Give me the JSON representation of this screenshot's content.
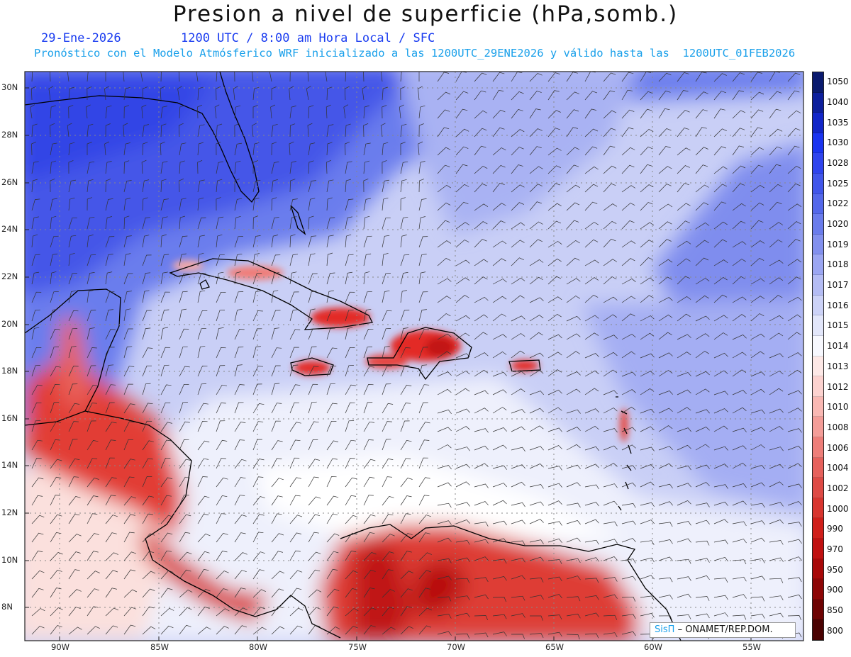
{
  "header": {
    "title": "Presion a nivel de superficie (hPa,somb.)",
    "date": "29-Ene-2026",
    "time_info": "1200 UTC / 8:00 am Hora Local / SFC",
    "forecast_note": "Pronóstico con el Modelo Atmósferico WRF inicializado a las 1200UTC_29ENE2026 y válido hasta las  1200UTC_01FEB2026"
  },
  "map": {
    "lon_labels": [
      "90W",
      "85W",
      "80W",
      "75W",
      "70W",
      "65W",
      "60W",
      "55W"
    ],
    "lat_labels": [
      "30N",
      "28N",
      "26N",
      "24N",
      "22N",
      "20N",
      "18N",
      "16N",
      "14N",
      "12N",
      "10N",
      "8N"
    ],
    "field": "surface pressure shaded",
    "overlay": "wind barbs"
  },
  "colorbar": {
    "labels": [
      "1050",
      "1040",
      "1035",
      "1030",
      "1028",
      "1025",
      "1022",
      "1020",
      "1019",
      "1018",
      "1017",
      "1016",
      "1015",
      "1014",
      "1013",
      "1012",
      "1010",
      "1008",
      "1006",
      "1004",
      "1002",
      "1000",
      "990",
      "970",
      "950",
      "900",
      "850",
      "800"
    ],
    "colors": [
      "#0a1a6e",
      "#0d1f9c",
      "#1226c8",
      "#1a34f0",
      "#2f44ee",
      "#4156ea",
      "#5468ea",
      "#6a7cec",
      "#8290ee",
      "#9ba6f2",
      "#b4bcf4",
      "#ccd2f7",
      "#e2e6fa",
      "#f7f8fe",
      "#fde8e6",
      "#fcd2cf",
      "#f9b8b3",
      "#f49d98",
      "#ee7e79",
      "#e6615c",
      "#de4a45",
      "#d8352f",
      "#d01f1a",
      "#c01010",
      "#a80808",
      "#8d0505",
      "#6e0303",
      "#4a0202"
    ]
  },
  "credit": {
    "logo": "SisΠ",
    "text": "– ONAMET/REP.DOM."
  }
}
